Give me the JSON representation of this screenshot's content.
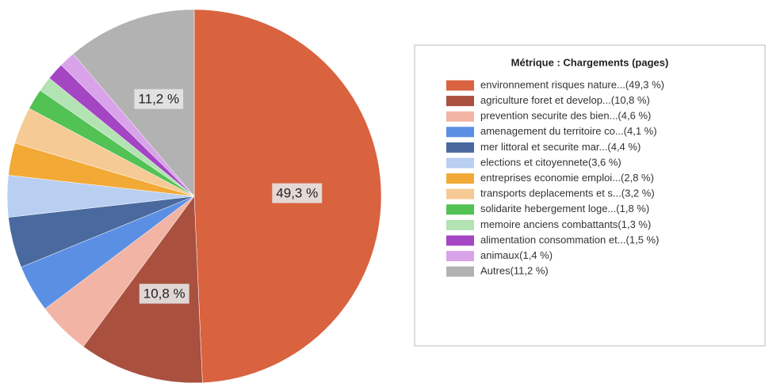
{
  "chart_data": {
    "type": "pie",
    "title": "Métrique :  Chargements (pages)",
    "categories": [
      "environnement  risques nature...(49,3 %)",
      "agriculture  foret et develop...(10,8 %)",
      "prevention  securite des bien...(4,6 %)",
      "amenagement du territoire  co...(4,1 %)",
      "mer  littoral et securite mar...(4,4 %)",
      "elections et citoyennete(3,6 %)",
      "entreprises  economie  emploi...(2,8 %)",
      "transports  deplacements et s...(3,2 %)",
      "solidarite  hebergement  loge...(1,8 %)",
      "memoire  anciens combattants(1,3 %)",
      "alimentation  consommation et...(1,5 %)",
      "animaux(1,4 %)",
      "Autres(11,2 %)"
    ],
    "values": [
      49.3,
      10.8,
      4.6,
      4.1,
      4.4,
      3.6,
      2.8,
      3.2,
      1.8,
      1.3,
      1.5,
      1.4,
      11.2
    ],
    "value_labels": [
      "49,3 %",
      "10,8 %",
      null,
      null,
      null,
      null,
      null,
      null,
      null,
      null,
      null,
      null,
      "11,2 %"
    ],
    "colors": [
      "#d9623f",
      "#a9503f",
      "#f2b4a4",
      "#5b8fe3",
      "#4a6a9f",
      "#b8cff2",
      "#f2a935",
      "#f5ca94",
      "#52c255",
      "#b3e2b3",
      "#a446c4",
      "#d9a3ea",
      "#b2b2b2"
    ],
    "legend": "right"
  }
}
